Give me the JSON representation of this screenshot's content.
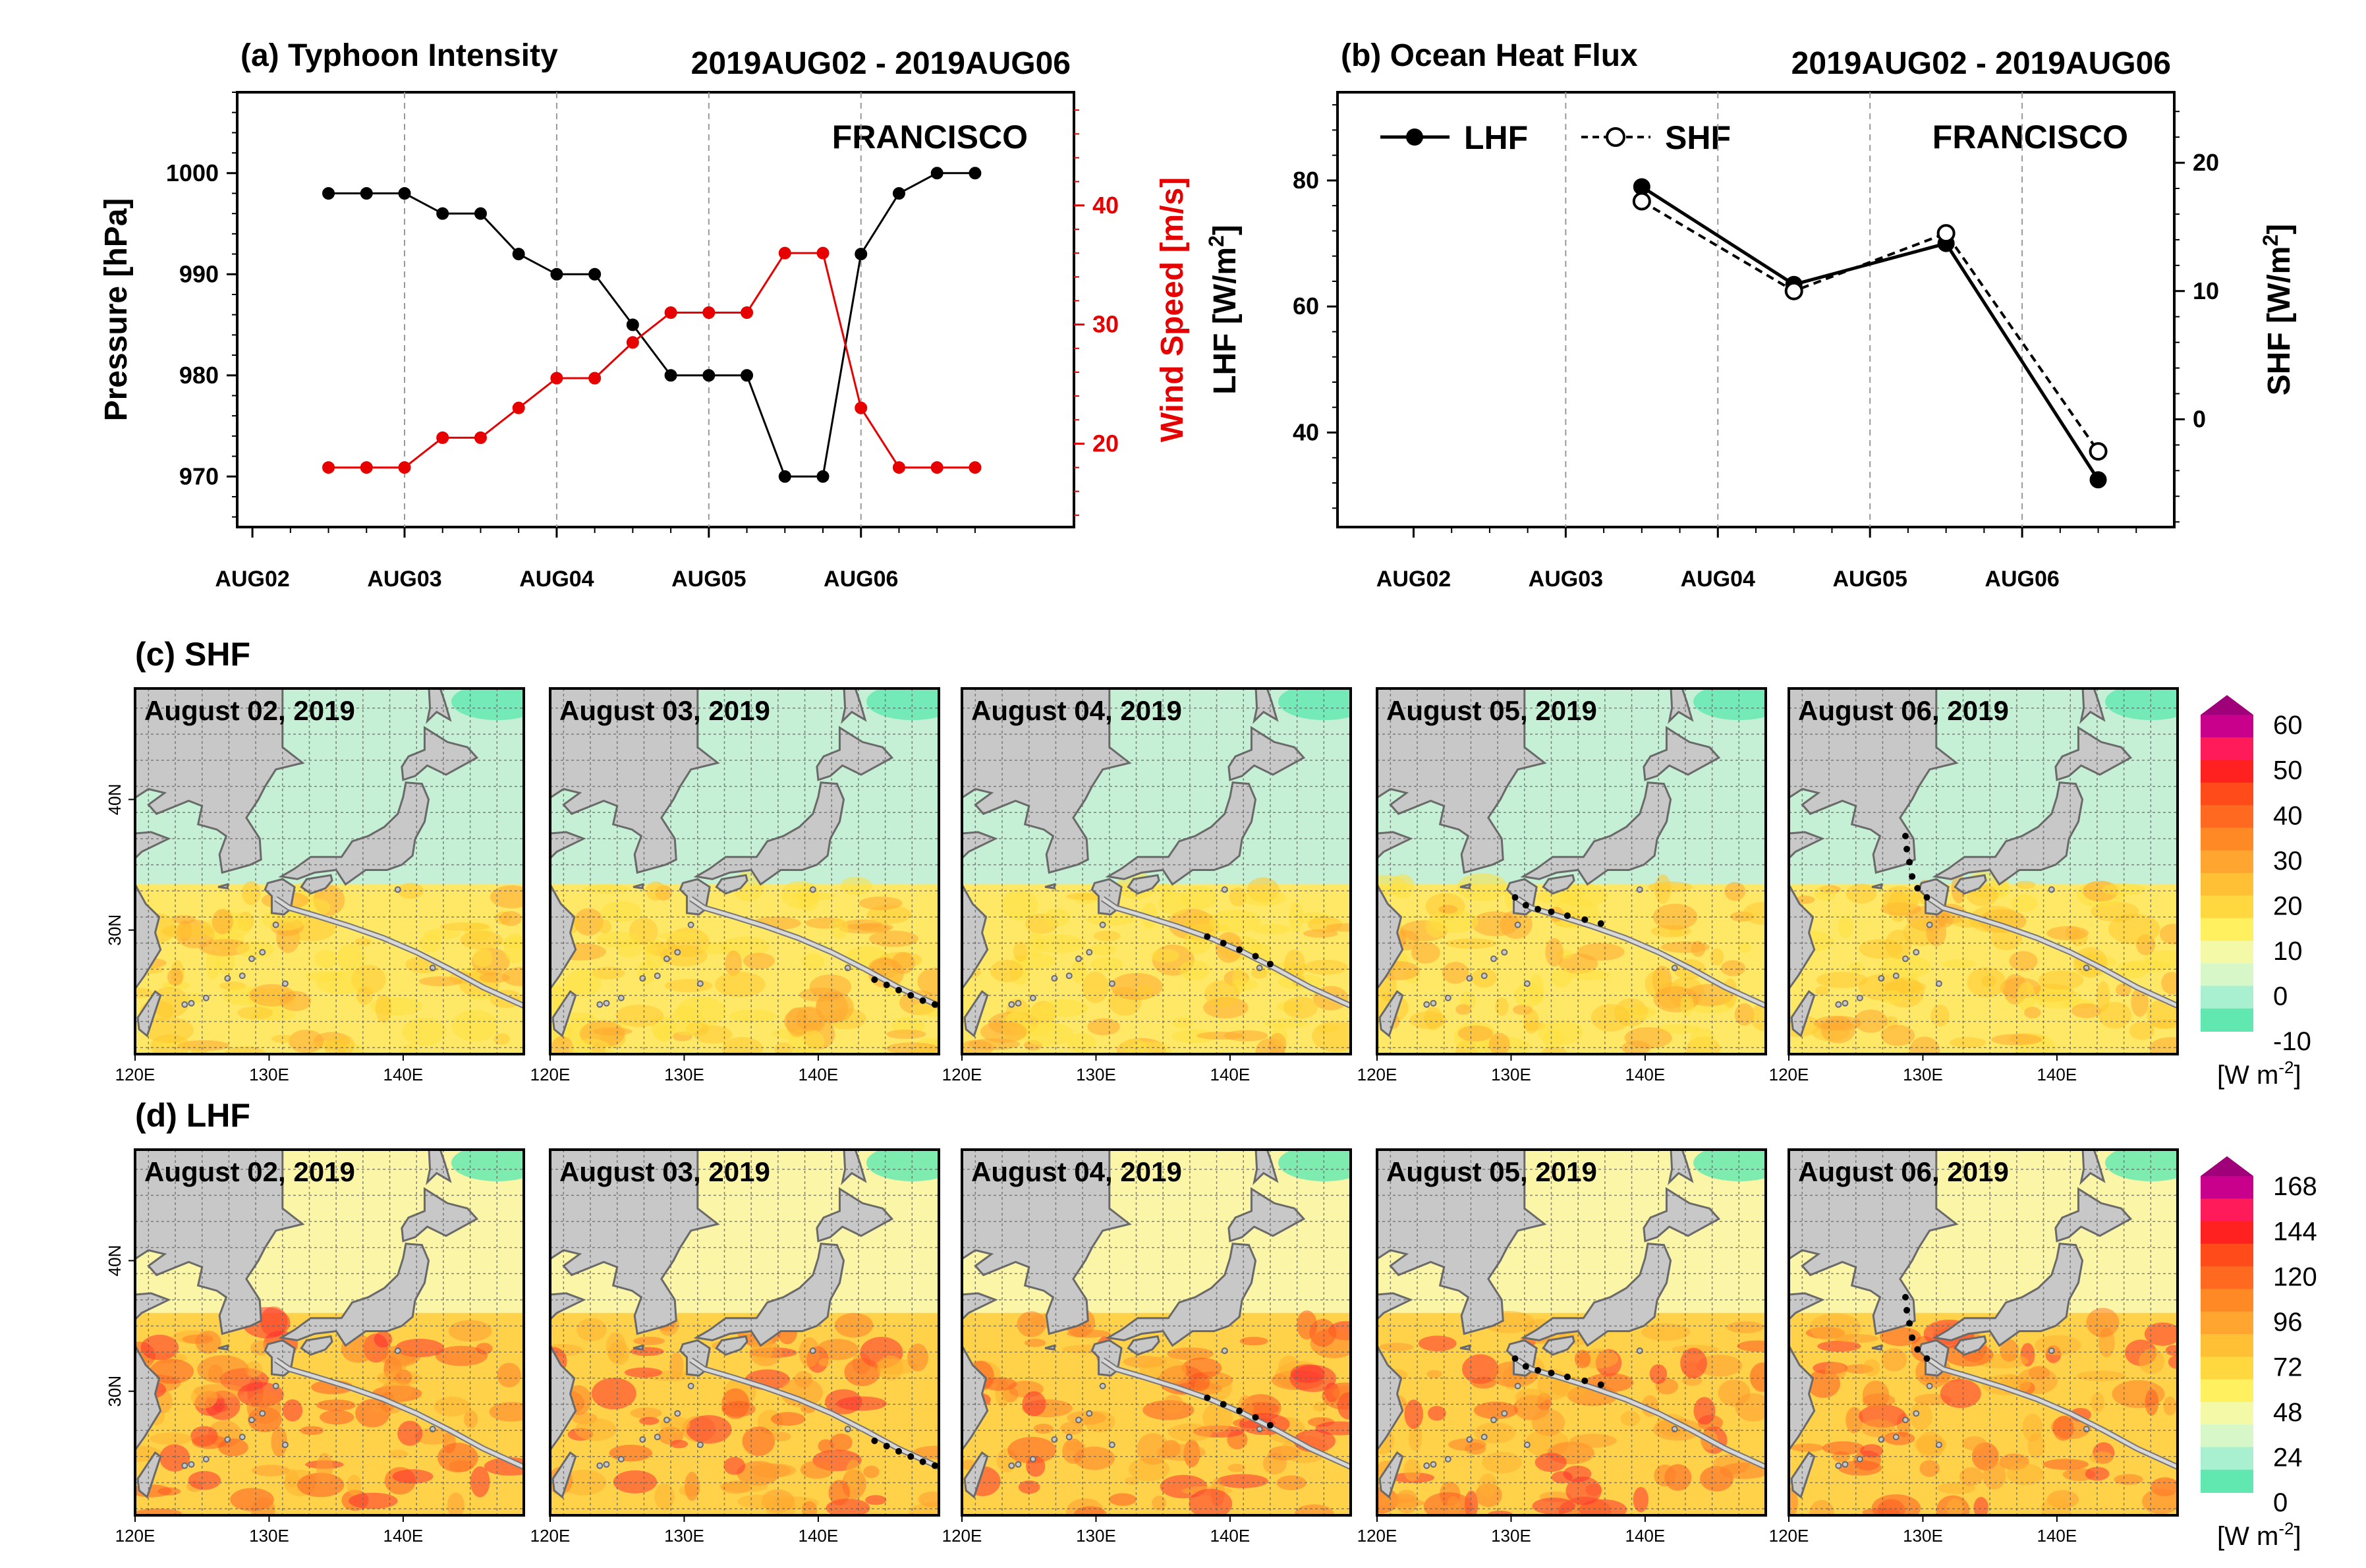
{
  "colors": {
    "land": "#c8c8c8",
    "land_edge": "#6a6a6a",
    "ocean_cool": "#c5f0d5",
    "track": "#bdbdbd",
    "pressure": "#000000",
    "wind": "#e60000"
  },
  "chart_data": [
    {
      "id": "a",
      "type": "line",
      "title": "(a) Typhoon Intensity",
      "date_range": "2019AUG02 - 2019AUG06",
      "storm": "FRANCISCO",
      "xticks": [
        "AUG02",
        "AUG03",
        "AUG04",
        "AUG05",
        "AUG06"
      ],
      "xlim": [
        -0.1,
        5.4
      ],
      "ylabel_left": "Pressure [hPa]",
      "ylabel_right": "Wind Speed [m/s]",
      "ylim_left": [
        965,
        1008
      ],
      "ylim_right": [
        13,
        49.5
      ],
      "yticks_left": [
        970,
        980,
        990,
        1000
      ],
      "yticks_right": [
        20,
        30,
        40
      ],
      "x": [
        0.5,
        0.75,
        1.0,
        1.25,
        1.5,
        1.75,
        2.0,
        2.25,
        2.5,
        2.75,
        3.0,
        3.25,
        3.5,
        3.75,
        4.0,
        4.25,
        4.5,
        4.75
      ],
      "series": [
        {
          "name": "Pressure",
          "axis": "left",
          "values": [
            998,
            998,
            998,
            996,
            996,
            992,
            990,
            990,
            985,
            980,
            980,
            980,
            970,
            970,
            992,
            998,
            1000,
            1000
          ]
        },
        {
          "name": "Wind Speed",
          "axis": "right",
          "values": [
            18,
            18,
            18,
            20.5,
            20.5,
            23,
            25.5,
            25.5,
            28.5,
            31,
            31,
            31,
            36,
            36,
            23,
            18,
            18,
            18
          ]
        }
      ]
    },
    {
      "id": "b",
      "type": "line",
      "title": "(b) Ocean Heat Flux",
      "date_range": "2019AUG02 - 2019AUG06",
      "storm": "FRANCISCO",
      "xticks": [
        "AUG02",
        "AUG03",
        "AUG04",
        "AUG05",
        "AUG06"
      ],
      "xlim": [
        -0.5,
        5.0
      ],
      "ylabel_left": "LHF [W/m",
      "ylabel_right": "SHF [W/m",
      "ylabel_sup": "2",
      "ylabel_close": "]",
      "ylim_left": [
        25,
        94
      ],
      "ylim_right": [
        -8.4,
        25.5
      ],
      "yticks_left": [
        40,
        60,
        80
      ],
      "yticks_right": [
        0,
        10,
        20
      ],
      "x": [
        1.5,
        2.5,
        3.5,
        4.5
      ],
      "legend": [
        "LHF",
        "SHF"
      ],
      "series": [
        {
          "name": "LHF",
          "axis": "left",
          "values": [
            79,
            63.5,
            70,
            32.5
          ]
        },
        {
          "name": "SHF",
          "axis": "right",
          "values": [
            17,
            10,
            14.5,
            -2.5
          ]
        }
      ]
    }
  ],
  "map_rows": [
    {
      "label": "(c) SHF",
      "field": "SHF",
      "colorbar_ticks": [
        "60",
        "50",
        "40",
        "30",
        "20",
        "10",
        "0",
        "-10"
      ],
      "colorbar_unit": "[W m",
      "colorbar_sup": "-2",
      "colorbar_close": "]"
    },
    {
      "label": "(d) LHF",
      "field": "LHF",
      "colorbar_ticks": [
        "168",
        "144",
        "120",
        "96",
        "72",
        "48",
        "24",
        "0"
      ],
      "colorbar_unit": "[W m",
      "colorbar_sup": "-2",
      "colorbar_close": "]"
    }
  ],
  "map_dates": [
    "August 02, 2019",
    "August 03, 2019",
    "August 04, 2019",
    "August 05, 2019",
    "August 06, 2019"
  ],
  "map_xticks": [
    "120E",
    "130E",
    "140E"
  ],
  "map_yticks": [
    "40N",
    "30N"
  ]
}
